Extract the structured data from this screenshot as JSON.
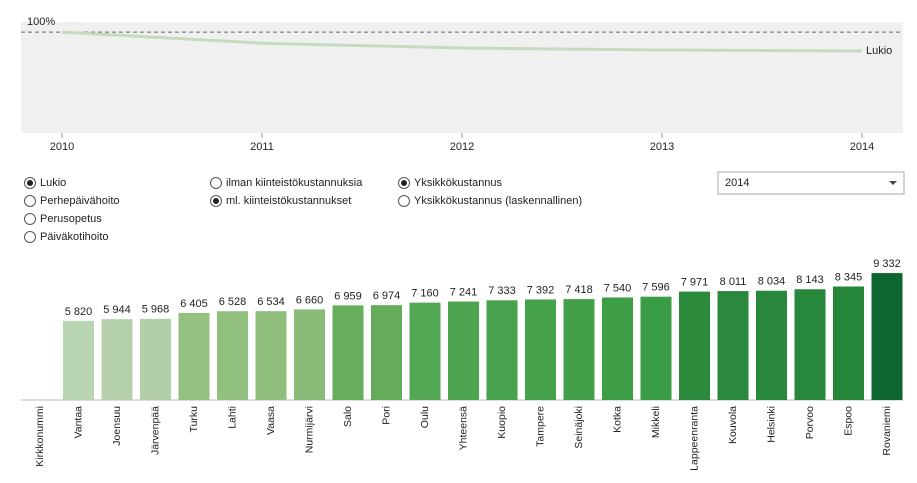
{
  "chart_data": [
    {
      "type": "line",
      "x": [
        2010,
        2011,
        2012,
        2013,
        2014
      ],
      "xlim": [
        2010,
        2014
      ],
      "xticks": [
        2010,
        2011,
        2012,
        2013,
        2014
      ],
      "ylim": [
        60,
        104
      ],
      "reference_line": {
        "value": 100,
        "label": "100%"
      },
      "series": [
        {
          "name": "Lukio",
          "color": "#c5dbbd",
          "values": [
            100,
            95.6,
            93.7,
            92.9,
            92.5
          ]
        }
      ]
    },
    {
      "type": "bar",
      "categories": [
        "Kirkkonummi",
        "Vantaa",
        "Joensuu",
        "Järvenpää",
        "Turku",
        "Lahti",
        "Vaasa",
        "Nurmijärvi",
        "Salo",
        "Pori",
        "Oulu",
        "Yhteensä",
        "Kuopio",
        "Tampere",
        "Seinäjoki",
        "Kotka",
        "Mikkeli",
        "Lappeenranta",
        "Kouvola",
        "Helsinki",
        "Porvoo",
        "Espoo",
        "Rovaniemi"
      ],
      "values": [
        null,
        5820,
        5944,
        5968,
        6405,
        6528,
        6534,
        6660,
        6959,
        6974,
        7160,
        7241,
        7333,
        7392,
        7418,
        7540,
        7596,
        7971,
        8011,
        8034,
        8143,
        8345,
        9332
      ],
      "value_labels": [
        null,
        "5 820",
        "5 944",
        "5 968",
        "6 405",
        "6 528",
        "6 534",
        "6 660",
        "6 959",
        "6 974",
        "7 160",
        "7 241",
        "7 333",
        "7 392",
        "7 418",
        "7 540",
        "7 596",
        "7 971",
        "8 011",
        "8 034",
        "8 143",
        "8 345",
        "9 332"
      ],
      "colors": [
        null,
        "#b8d4b0",
        "#b4d1ac",
        "#b2cfa9",
        "#94c182",
        "#92c07f",
        "#90bf7d",
        "#8abb78",
        "#66ad5c",
        "#64ac5a",
        "#53a652",
        "#4ea44f",
        "#48a14c",
        "#45a04a",
        "#43a049",
        "#3e9e46",
        "#3a9c44",
        "#2c8a3d",
        "#2a893c",
        "#29883b",
        "#27873a",
        "#258538",
        "#0d6630"
      ],
      "ylim": [
        0,
        10000
      ]
    }
  ],
  "controls": {
    "radio_groups": [
      [
        {
          "label": "Lukio",
          "selected": true
        },
        {
          "label": "Perhepäivähoito",
          "selected": false
        },
        {
          "label": "Perusopetus",
          "selected": false
        },
        {
          "label": "Päiväkotihoito",
          "selected": false
        }
      ],
      [
        {
          "label": "ilman kiinteistökustannuksia",
          "selected": false
        },
        {
          "label": "ml. kiinteistökustannukset",
          "selected": true
        }
      ],
      [
        {
          "label": "Yksikkökustannus",
          "selected": true
        },
        {
          "label": "Yksikkökustannus (laskennallinen)",
          "selected": false
        }
      ]
    ],
    "dropdown": "2014"
  }
}
